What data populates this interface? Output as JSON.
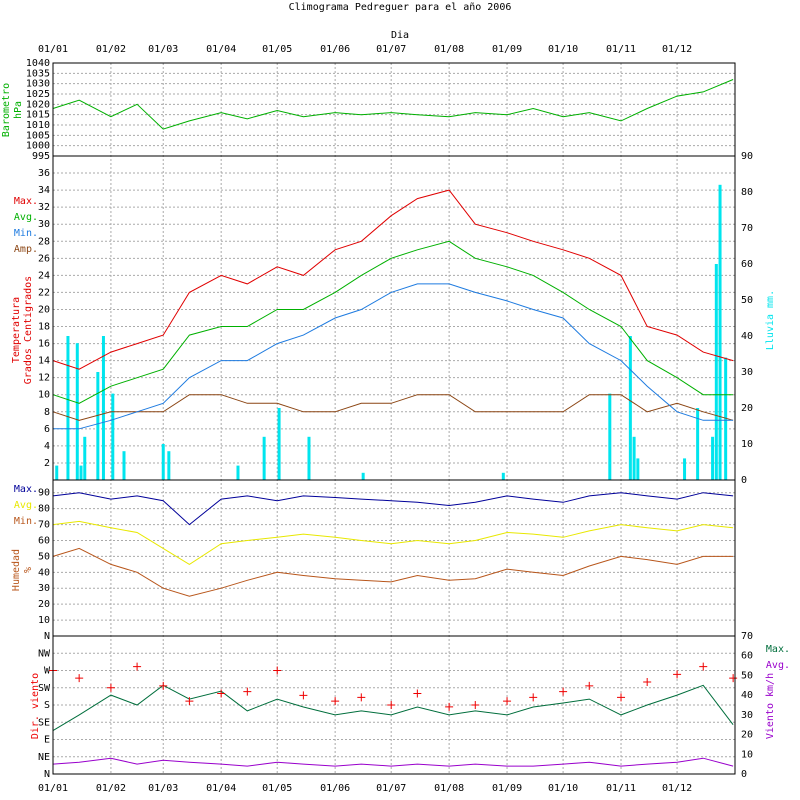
{
  "title": "Climograma Pedreguer para el año 2006",
  "top_axis_label": "Dia",
  "months": [
    "01/01",
    "01/02",
    "01/03",
    "01/04",
    "01/05",
    "01/06",
    "01/07",
    "01/08",
    "01/09",
    "01/10",
    "01/11",
    "01/12"
  ],
  "colors": {
    "grid": "#aaaaaa",
    "baro": "#00b000",
    "tmax": "#e00000",
    "tavg": "#00b000",
    "tmin": "#1e7be0",
    "tamp": "#8b4513",
    "rain": "#00e5ee",
    "hmax": "#000099",
    "havg": "#e8e800",
    "hmin": "#b8561b",
    "wdir": "#ee0000",
    "wmax": "#006e3c",
    "wavg": "#9900cc"
  },
  "chart_data": [
    {
      "type": "line",
      "panel": "barometer",
      "ylabel": [
        "Barometro",
        "hPa"
      ],
      "ylim": [
        995,
        1040
      ],
      "ticks": [
        995,
        1000,
        1005,
        1010,
        1015,
        1020,
        1025,
        1030,
        1035,
        1040
      ],
      "x": [
        "2006-01-01",
        "2006-01-15",
        "2006-02-01",
        "2006-02-15",
        "2006-03-01",
        "2006-03-15",
        "2006-04-01",
        "2006-04-15",
        "2006-05-01",
        "2006-05-15",
        "2006-06-01",
        "2006-06-15",
        "2006-07-01",
        "2006-07-15",
        "2006-08-01",
        "2006-08-15",
        "2006-09-01",
        "2006-09-15",
        "2006-10-01",
        "2006-10-15",
        "2006-11-01",
        "2006-11-15",
        "2006-12-01",
        "2006-12-15",
        "2006-12-31"
      ],
      "series": [
        {
          "name": "Barometro",
          "values": [
            1018,
            1022,
            1014,
            1020,
            1008,
            1012,
            1016,
            1013,
            1017,
            1014,
            1016,
            1015,
            1016,
            1015,
            1014,
            1016,
            1015,
            1018,
            1014,
            1016,
            1012,
            1018,
            1024,
            1026,
            1032
          ]
        }
      ]
    },
    {
      "type": "line",
      "panel": "temperature",
      "ylabel": [
        "Temperatura",
        "Grados Centigrados"
      ],
      "y2label": "Lluvia mm.",
      "ylim": [
        0,
        38
      ],
      "ticks": [
        2,
        4,
        6,
        8,
        10,
        12,
        14,
        16,
        18,
        20,
        22,
        24,
        26,
        28,
        30,
        32,
        34,
        36
      ],
      "y2lim": [
        0,
        90
      ],
      "ticks2": [
        0,
        10,
        20,
        30,
        40,
        50,
        60,
        70,
        80,
        90
      ],
      "legend": [
        "Max.",
        "Avg.",
        "Min.",
        "Amp."
      ],
      "x": [
        "2006-01-01",
        "2006-01-15",
        "2006-02-01",
        "2006-02-15",
        "2006-03-01",
        "2006-03-15",
        "2006-04-01",
        "2006-04-15",
        "2006-05-01",
        "2006-05-15",
        "2006-06-01",
        "2006-06-15",
        "2006-07-01",
        "2006-07-15",
        "2006-08-01",
        "2006-08-15",
        "2006-09-01",
        "2006-09-15",
        "2006-10-01",
        "2006-10-15",
        "2006-11-01",
        "2006-11-15",
        "2006-12-01",
        "2006-12-15",
        "2006-12-31"
      ],
      "series": [
        {
          "name": "Max.",
          "values": [
            14,
            13,
            15,
            16,
            17,
            22,
            24,
            23,
            25,
            24,
            27,
            28,
            31,
            33,
            34,
            30,
            29,
            28,
            27,
            26,
            24,
            18,
            17,
            15,
            14
          ]
        },
        {
          "name": "Avg.",
          "values": [
            10,
            9,
            11,
            12,
            13,
            17,
            18,
            18,
            20,
            20,
            22,
            24,
            26,
            27,
            28,
            26,
            25,
            24,
            22,
            20,
            18,
            14,
            12,
            10,
            10
          ]
        },
        {
          "name": "Min.",
          "values": [
            6,
            6,
            7,
            8,
            9,
            12,
            14,
            14,
            16,
            17,
            19,
            20,
            22,
            23,
            23,
            22,
            21,
            20,
            19,
            16,
            14,
            11,
            8,
            7,
            7
          ]
        },
        {
          "name": "Amp.",
          "values": [
            8,
            7,
            8,
            8,
            8,
            10,
            10,
            9,
            9,
            8,
            8,
            9,
            9,
            10,
            10,
            8,
            8,
            8,
            8,
            10,
            10,
            8,
            9,
            8,
            7
          ]
        }
      ],
      "rain": {
        "name": "Lluvia mm.",
        "dates": [
          "2006-01-03",
          "2006-01-09",
          "2006-01-14",
          "2006-01-16",
          "2006-01-18",
          "2006-01-25",
          "2006-01-28",
          "2006-02-02",
          "2006-02-08",
          "2006-03-01",
          "2006-03-04",
          "2006-04-10",
          "2006-04-24",
          "2006-05-02",
          "2006-05-18",
          "2006-06-16",
          "2006-08-30",
          "2006-10-26",
          "2006-11-06",
          "2006-11-08",
          "2006-11-10",
          "2006-12-05",
          "2006-12-12",
          "2006-12-20",
          "2006-12-22",
          "2006-12-24",
          "2006-12-27"
        ],
        "values": [
          4,
          40,
          38,
          4,
          12,
          30,
          40,
          24,
          8,
          10,
          8,
          4,
          12,
          20,
          12,
          2,
          2,
          24,
          40,
          12,
          6,
          6,
          20,
          12,
          60,
          82,
          34
        ]
      }
    },
    {
      "type": "line",
      "panel": "humidity",
      "ylabel": [
        "Humedad",
        "%"
      ],
      "ylim": [
        0,
        98
      ],
      "ticks": [
        10,
        20,
        30,
        40,
        50,
        60,
        70,
        80,
        90
      ],
      "legend": [
        "Max.",
        "Avg.",
        "Min."
      ],
      "x": [
        "2006-01-01",
        "2006-01-15",
        "2006-02-01",
        "2006-02-15",
        "2006-03-01",
        "2006-03-15",
        "2006-04-01",
        "2006-04-15",
        "2006-05-01",
        "2006-05-15",
        "2006-06-01",
        "2006-06-15",
        "2006-07-01",
        "2006-07-15",
        "2006-08-01",
        "2006-08-15",
        "2006-09-01",
        "2006-09-15",
        "2006-10-01",
        "2006-10-15",
        "2006-11-01",
        "2006-11-15",
        "2006-12-01",
        "2006-12-15",
        "2006-12-31"
      ],
      "series": [
        {
          "name": "Max.",
          "values": [
            88,
            90,
            86,
            88,
            85,
            70,
            86,
            88,
            85,
            88,
            87,
            86,
            85,
            84,
            82,
            84,
            88,
            86,
            84,
            88,
            90,
            88,
            86,
            90,
            88
          ]
        },
        {
          "name": "Avg.",
          "values": [
            70,
            72,
            68,
            65,
            55,
            45,
            58,
            60,
            62,
            64,
            62,
            60,
            58,
            60,
            58,
            60,
            65,
            64,
            62,
            66,
            70,
            68,
            66,
            70,
            68
          ]
        },
        {
          "name": "Min.",
          "values": [
            50,
            55,
            45,
            40,
            30,
            25,
            30,
            35,
            40,
            38,
            36,
            35,
            34,
            38,
            35,
            36,
            42,
            40,
            38,
            44,
            50,
            48,
            45,
            50,
            50
          ]
        }
      ]
    },
    {
      "type": "scatter",
      "panel": "wind",
      "ylabel": "Dir. viento",
      "y2label": "Viento km/h",
      "ylim": [
        0,
        360
      ],
      "ticks": [
        "N",
        "NE",
        "E",
        "SE",
        "S",
        "SW",
        "W",
        "NW",
        "N"
      ],
      "y2lim": [
        0,
        70
      ],
      "ticks2": [
        0,
        10,
        20,
        30,
        40,
        50,
        60,
        70
      ],
      "legend": [
        "Max.",
        "Avg."
      ],
      "x": [
        "2006-01-01",
        "2006-01-15",
        "2006-02-01",
        "2006-02-15",
        "2006-03-01",
        "2006-03-15",
        "2006-04-01",
        "2006-04-15",
        "2006-05-01",
        "2006-05-15",
        "2006-06-01",
        "2006-06-15",
        "2006-07-01",
        "2006-07-15",
        "2006-08-01",
        "2006-08-15",
        "2006-09-01",
        "2006-09-15",
        "2006-10-01",
        "2006-10-15",
        "2006-11-01",
        "2006-11-15",
        "2006-12-01",
        "2006-12-15",
        "2006-12-31"
      ],
      "series": [
        {
          "name": "Max.",
          "values": [
            22,
            30,
            40,
            35,
            45,
            38,
            42,
            32,
            38,
            34,
            30,
            32,
            30,
            34,
            30,
            32,
            30,
            34,
            36,
            38,
            30,
            35,
            40,
            45,
            25
          ]
        },
        {
          "name": "Avg.",
          "values": [
            5,
            6,
            8,
            5,
            7,
            6,
            5,
            4,
            6,
            5,
            4,
            5,
            4,
            5,
            4,
            5,
            4,
            4,
            5,
            6,
            4,
            5,
            6,
            8,
            4
          ]
        }
      ],
      "direction": {
        "name": "Dir. viento",
        "values": [
          270,
          250,
          225,
          280,
          230,
          190,
          210,
          215,
          270,
          205,
          190,
          200,
          180,
          210,
          175,
          180,
          190,
          200,
          215,
          230,
          200,
          240,
          260,
          280,
          250
        ]
      }
    }
  ]
}
